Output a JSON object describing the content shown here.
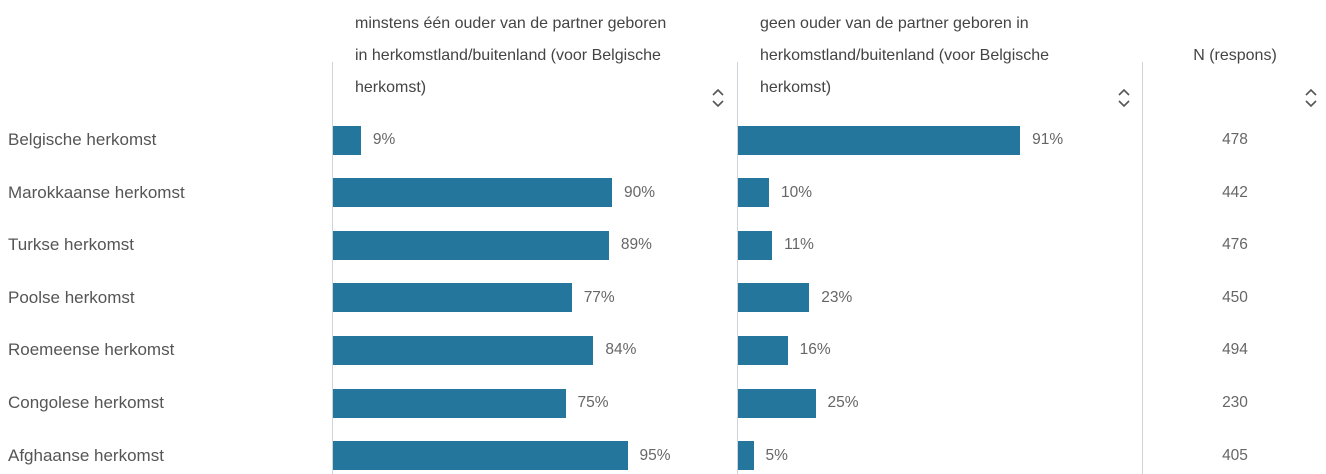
{
  "chart_data": {
    "type": "bar",
    "categories": [
      "Belgische herkomst",
      "Marokkaanse herkomst",
      "Turkse herkomst",
      "Poolse herkomst",
      "Roemeense herkomst",
      "Congolese herkomst",
      "Afghaanse herkomst"
    ],
    "series": [
      {
        "name": "minstens één ouder van de partner geboren in herkomstland/buitenland (voor Belgische herkomst)",
        "color": "#24769c",
        "values": [
          9,
          90,
          89,
          77,
          84,
          75,
          95
        ],
        "value_labels": [
          "9%",
          "90%",
          "89%",
          "77%",
          "84%",
          "75%",
          "95%"
        ]
      },
      {
        "name": "geen ouder van de partner geboren in herkomstland/buitenland (voor Belgische herkomst)",
        "color": "#24769c",
        "values": [
          91,
          10,
          11,
          23,
          16,
          25,
          5
        ],
        "value_labels": [
          "91%",
          "10%",
          "11%",
          "23%",
          "16%",
          "25%",
          "5%"
        ]
      }
    ],
    "n_column": {
      "header": "N (respons)",
      "values": [
        "478",
        "442",
        "476",
        "450",
        "494",
        "230",
        "405"
      ]
    }
  }
}
